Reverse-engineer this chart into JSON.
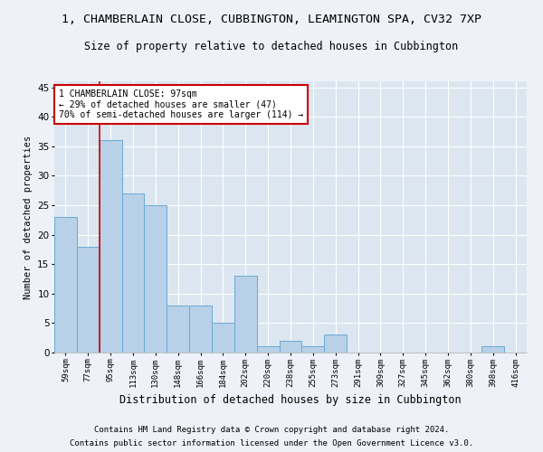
{
  "title1": "1, CHAMBERLAIN CLOSE, CUBBINGTON, LEAMINGTON SPA, CV32 7XP",
  "title2": "Size of property relative to detached houses in Cubbington",
  "xlabel": "Distribution of detached houses by size in Cubbington",
  "ylabel": "Number of detached properties",
  "categories": [
    "59sqm",
    "77sqm",
    "95sqm",
    "113sqm",
    "130sqm",
    "148sqm",
    "166sqm",
    "184sqm",
    "202sqm",
    "220sqm",
    "238sqm",
    "255sqm",
    "273sqm",
    "291sqm",
    "309sqm",
    "327sqm",
    "345sqm",
    "362sqm",
    "380sqm",
    "398sqm",
    "416sqm"
  ],
  "values": [
    23,
    18,
    36,
    27,
    25,
    8,
    8,
    5,
    13,
    1,
    2,
    1,
    3,
    0,
    0,
    0,
    0,
    0,
    0,
    1,
    0
  ],
  "bar_color": "#b8d0e8",
  "bar_edge_color": "#6aaad4",
  "property_line_color": "#cc0000",
  "property_line_index": 2,
  "annotation_text": "1 CHAMBERLAIN CLOSE: 97sqm\n← 29% of detached houses are smaller (47)\n70% of semi-detached houses are larger (114) →",
  "annotation_box_color": "#ffffff",
  "annotation_box_edge_color": "#cc0000",
  "ylim": [
    0,
    46
  ],
  "yticks": [
    0,
    5,
    10,
    15,
    20,
    25,
    30,
    35,
    40,
    45
  ],
  "footnote1": "Contains HM Land Registry data © Crown copyright and database right 2024.",
  "footnote2": "Contains public sector information licensed under the Open Government Licence v3.0.",
  "bg_color": "#eef2f8",
  "plot_bg_color": "#dce6f0",
  "title1_fontsize": 9.5,
  "title2_fontsize": 8.5,
  "xlabel_fontsize": 8.5,
  "ylabel_fontsize": 7.5,
  "footnote_fontsize": 6.5,
  "tick_fontsize": 6.5,
  "ytick_fontsize": 7.5
}
